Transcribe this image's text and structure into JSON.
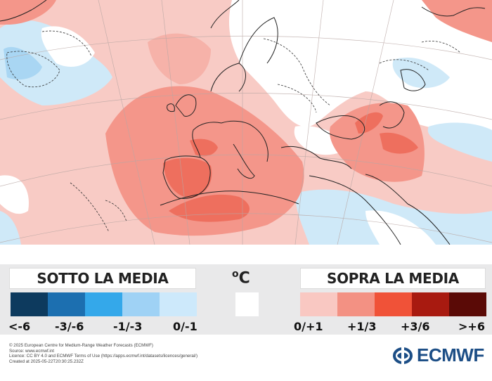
{
  "legend": {
    "below_title": "SOTTO LA MEDIA",
    "above_title": "SOPRA LA MEDIA",
    "unit": "C",
    "below_bins": [
      {
        "label": "<-6",
        "color": "#0d3a5e"
      },
      {
        "label": "-3/-6",
        "color": "#1c6fb0"
      },
      {
        "label": "-1/-3",
        "color": "#34a8ea"
      },
      {
        "label": "0/-1",
        "color": "#9fd2f5"
      },
      {
        "label": "",
        "color": "#cde9fb"
      }
    ],
    "neutral_color": "#ffffff",
    "above_bins": [
      {
        "label": "0/+1",
        "color": "#f9c8c2"
      },
      {
        "label": "+1/3",
        "color": "#f39183"
      },
      {
        "label": "+3/6",
        "color": "#f05238"
      },
      {
        "label": ">+6",
        "color": "#a81a10"
      },
      {
        "label": "",
        "color": "#5a0a06"
      }
    ]
  },
  "map_colors": {
    "ocean_base": "#f8cbc5",
    "warm_1": "#f6b2a9",
    "warm_2": "#f4968a",
    "warm_3": "#ee6f5e",
    "hot": "#e94d3a",
    "neutral": "#ffffff",
    "cool_1": "#cfe9f8",
    "cool_2": "#a9d6f3"
  },
  "credits": [
    "© 2025 European Centre for Medium-Range Weather Forecasts (ECMWF)",
    "Source: www.ecmwf.int",
    "Licence: CC BY 4.0 and ECMWF Terms of Use (https://apps.ecmwf.int/datasets/licences/general/)",
    "Created at 2025-05-22T20:30:25.232Z"
  ],
  "logo": {
    "text": "ECMWF",
    "icon": "ecmwf-swirl-icon",
    "color": "#1c4e86"
  }
}
